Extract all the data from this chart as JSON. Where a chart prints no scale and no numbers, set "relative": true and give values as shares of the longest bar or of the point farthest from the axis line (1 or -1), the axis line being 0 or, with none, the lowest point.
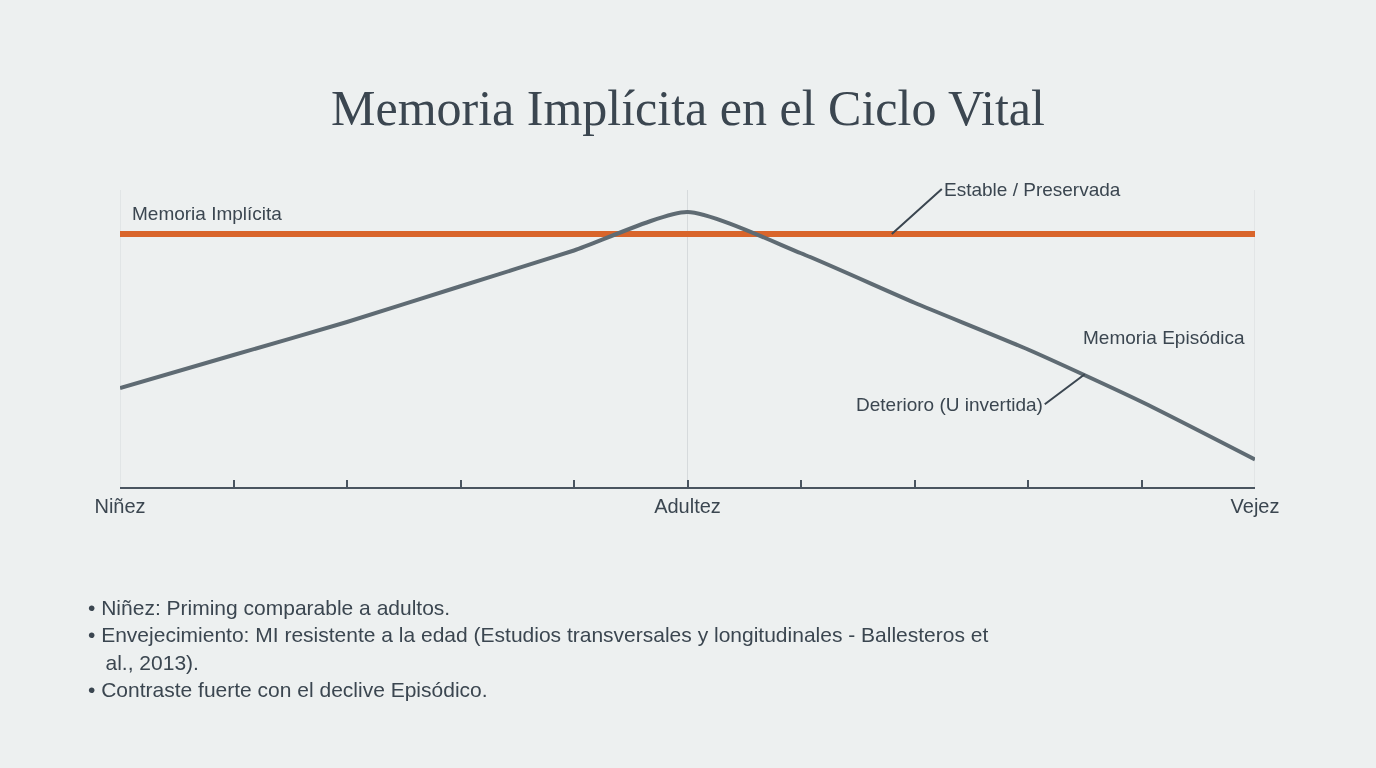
{
  "chart_data": {
    "type": "line",
    "title": "Memoria Implícita en el Ciclo Vital",
    "relative": true,
    "grid": "x",
    "marker": "none",
    "line_style": "solid",
    "categories": [
      "Niñez",
      null,
      null,
      null,
      null,
      "Adultez",
      null,
      null,
      null,
      null,
      "Vejez"
    ],
    "series": [
      {
        "name": "Memoria Implícita",
        "color": "#d9652b",
        "values": [
          0.92,
          0.92,
          0.92,
          0.92,
          0.92,
          0.92,
          0.92,
          0.92,
          0.92,
          0.92,
          0.92
        ]
      },
      {
        "name": "Memoria Episódica",
        "color": "#5f6b73",
        "values": [
          0.36,
          0.48,
          0.6,
          0.73,
          0.86,
          1.0,
          0.85,
          0.67,
          0.5,
          0.31,
          0.1
        ]
      }
    ],
    "annotations": [
      "Estable / Preservada",
      "Deterioro (U invertida)",
      "• Niñez: Priming comparable a adultos.",
      "• Envejecimiento: MI resistente a la edad (Estudios transversales y longitudinales - Ballesteros et al., 2013).",
      "• Contraste fuerte con el declive Episódico."
    ]
  }
}
